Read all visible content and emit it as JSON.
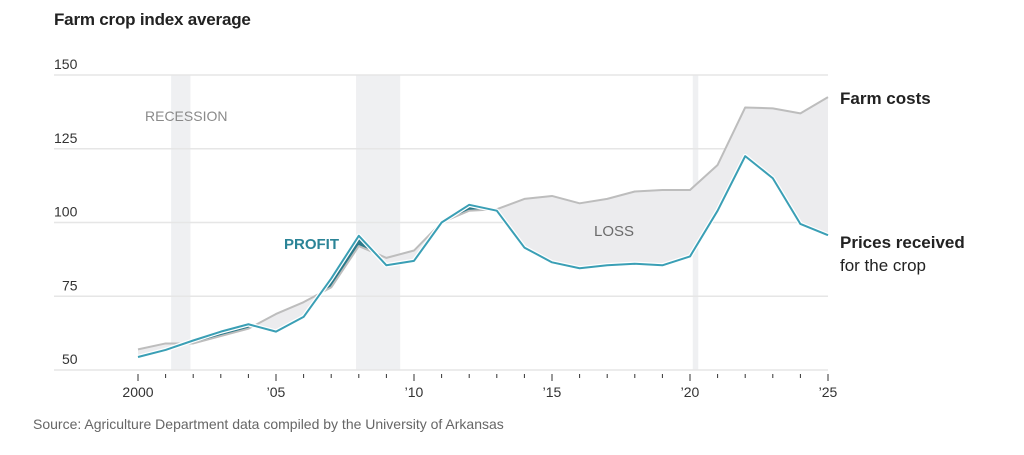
{
  "title": "Farm crop index average",
  "source": "Source: Agriculture Department data compiled by the University of Arkansas",
  "colors": {
    "prices": "#3a9fb5",
    "costs": "#bdbdbd",
    "loss_fill": "#ececee",
    "profit_fill": "#2b7a8a",
    "recession_fill": "#eff0f2",
    "grid": "#e6e6e6"
  },
  "chart_data": {
    "type": "line",
    "title": "Farm crop index average",
    "xlabel": "",
    "ylabel": "",
    "xlim": [
      2000,
      2025
    ],
    "ylim": [
      50,
      150
    ],
    "grid": true,
    "y_ticks": [
      50,
      75,
      100,
      125,
      150
    ],
    "y_tick_labels": [
      "50",
      "75",
      "100",
      "125",
      "150"
    ],
    "x_major_ticks": [
      2000,
      2005,
      2010,
      2015,
      2020,
      2025
    ],
    "x_tick_labels": [
      "2000",
      "’05",
      "’10",
      "’15",
      "’20",
      "’25"
    ],
    "x": [
      2000,
      2001,
      2002,
      2003,
      2004,
      2005,
      2006,
      2007,
      2008,
      2009,
      2010,
      2011,
      2012,
      2013,
      2014,
      2015,
      2016,
      2017,
      2018,
      2019,
      2020,
      2021,
      2022,
      2023,
      2024,
      2025
    ],
    "series": [
      {
        "name": "Farm costs",
        "label": "Farm costs",
        "values": [
          57,
          59,
          59,
          61.5,
          64,
          69,
          73,
          78,
          92,
          88,
          90.5,
          100,
          104,
          104.5,
          108,
          109,
          106.5,
          108,
          110.5,
          111,
          111,
          119.5,
          139,
          138.7,
          137,
          142.5
        ]
      },
      {
        "name": "Prices received for the crop",
        "label": "Prices received",
        "sublabel": "for the crop",
        "values": [
          54.4,
          56.8,
          60,
          63,
          65.5,
          63,
          68,
          81,
          95.5,
          85.5,
          87,
          100,
          106,
          104,
          91.5,
          86.5,
          84.5,
          85.5,
          86,
          85.5,
          88.5,
          104,
          122.5,
          115,
          99.5,
          95.7
        ]
      }
    ],
    "recessions": [
      {
        "start": 2001.2,
        "end": 2001.9
      },
      {
        "start": 2007.9,
        "end": 2009.5
      },
      {
        "start": 2020.1,
        "end": 2020.3
      }
    ],
    "annotations": {
      "recession": "RECESSION",
      "profit": "PROFIT",
      "loss": "LOSS"
    },
    "legend": "direct-labels-right"
  }
}
